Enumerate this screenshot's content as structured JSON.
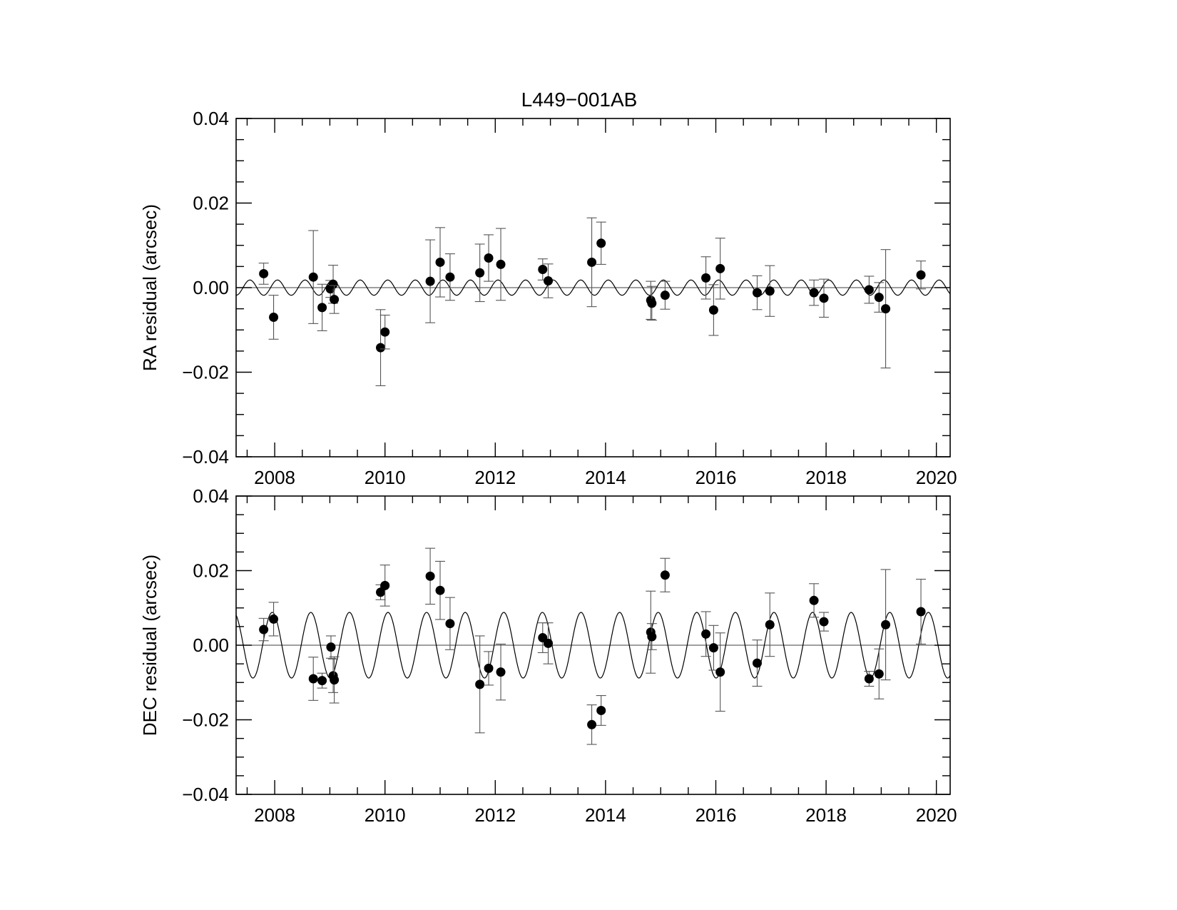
{
  "chart_data": {
    "title": "L449−001AB",
    "xlim": [
      2007.3,
      2020.25
    ],
    "xticks": [
      2008,
      2010,
      2012,
      2014,
      2016,
      2018,
      2020
    ],
    "xtick_labels": [
      "2008",
      "2010",
      "2012",
      "2014",
      "2016",
      "2018",
      "2020"
    ],
    "panels": [
      {
        "type": "scatter",
        "ylabel": "RA residual (arcsec)",
        "ylim": [
          -0.04,
          0.04
        ],
        "yticks": [
          -0.04,
          -0.02,
          0.0,
          0.02,
          0.04
        ],
        "ytick_labels": [
          "−0.04",
          "−0.02",
          "0.00",
          "0.02",
          "0.04"
        ],
        "model": {
          "amplitude": 0.0018,
          "period": 0.5,
          "phase": 0.05
        },
        "points": [
          {
            "x": 2007.8,
            "y": 0.0033,
            "err": 0.0025
          },
          {
            "x": 2007.98,
            "y": -0.007,
            "err": 0.0052
          },
          {
            "x": 2008.7,
            "y": 0.0025,
            "err": 0.011
          },
          {
            "x": 2008.86,
            "y": -0.0047,
            "err": 0.0055
          },
          {
            "x": 2009.01,
            "y": -0.0003,
            "err": 0.002
          },
          {
            "x": 2009.06,
            "y": 0.0008,
            "err": 0.0045
          },
          {
            "x": 2009.08,
            "y": -0.0028,
            "err": 0.0033
          },
          {
            "x": 2009.92,
            "y": -0.0142,
            "err": 0.009
          },
          {
            "x": 2010.0,
            "y": -0.0105,
            "err": 0.004
          },
          {
            "x": 2010.82,
            "y": 0.0015,
            "err": 0.0098
          },
          {
            "x": 2011.0,
            "y": 0.006,
            "err": 0.0082
          },
          {
            "x": 2011.18,
            "y": 0.0025,
            "err": 0.0055
          },
          {
            "x": 2011.72,
            "y": 0.0035,
            "err": 0.0068
          },
          {
            "x": 2011.88,
            "y": 0.007,
            "err": 0.0055
          },
          {
            "x": 2012.1,
            "y": 0.0055,
            "err": 0.0085
          },
          {
            "x": 2012.86,
            "y": 0.0043,
            "err": 0.0025
          },
          {
            "x": 2012.96,
            "y": 0.0016,
            "err": 0.004
          },
          {
            "x": 2013.75,
            "y": 0.006,
            "err": 0.0105
          },
          {
            "x": 2013.92,
            "y": 0.0105,
            "err": 0.005
          },
          {
            "x": 2014.82,
            "y": -0.003,
            "err": 0.0045
          },
          {
            "x": 2014.84,
            "y": -0.0037,
            "err": 0.004
          },
          {
            "x": 2015.08,
            "y": -0.0018,
            "err": 0.0033
          },
          {
            "x": 2015.82,
            "y": 0.0023,
            "err": 0.005
          },
          {
            "x": 2015.96,
            "y": -0.0053,
            "err": 0.006
          },
          {
            "x": 2016.08,
            "y": 0.0045,
            "err": 0.0072
          },
          {
            "x": 2016.75,
            "y": -0.0012,
            "err": 0.004
          },
          {
            "x": 2016.98,
            "y": -0.0008,
            "err": 0.006
          },
          {
            "x": 2017.78,
            "y": -0.0012,
            "err": 0.003
          },
          {
            "x": 2017.96,
            "y": -0.0025,
            "err": 0.0045
          },
          {
            "x": 2018.78,
            "y": -0.0005,
            "err": 0.0032
          },
          {
            "x": 2018.96,
            "y": -0.0023,
            "err": 0.0035
          },
          {
            "x": 2019.08,
            "y": -0.005,
            "err": 0.014
          },
          {
            "x": 2019.72,
            "y": 0.003,
            "err": 0.0033
          }
        ]
      },
      {
        "type": "scatter",
        "ylabel": "DEC residual (arcsec)",
        "ylim": [
          -0.04,
          0.04
        ],
        "yticks": [
          -0.04,
          -0.02,
          0.0,
          0.02,
          0.04
        ],
        "ytick_labels": [
          "−0.04",
          "−0.02",
          "0.00",
          "0.02",
          "0.04"
        ],
        "model": {
          "amplitude": 0.0088,
          "period": 0.7,
          "phase": -0.045
        },
        "points": [
          {
            "x": 2007.8,
            "y": 0.0042,
            "err": 0.003
          },
          {
            "x": 2007.98,
            "y": 0.007,
            "err": 0.0045
          },
          {
            "x": 2008.7,
            "y": -0.009,
            "err": 0.0058
          },
          {
            "x": 2008.86,
            "y": -0.0095,
            "err": 0.002
          },
          {
            "x": 2009.02,
            "y": -0.0005,
            "err": 0.003
          },
          {
            "x": 2009.06,
            "y": -0.0082,
            "err": 0.0045
          },
          {
            "x": 2009.08,
            "y": -0.0093,
            "err": 0.0062
          },
          {
            "x": 2009.92,
            "y": 0.0142,
            "err": 0.002
          },
          {
            "x": 2010.0,
            "y": 0.016,
            "err": 0.0055
          },
          {
            "x": 2010.82,
            "y": 0.0185,
            "err": 0.0075
          },
          {
            "x": 2011.0,
            "y": 0.0147,
            "err": 0.0078
          },
          {
            "x": 2011.18,
            "y": 0.0058,
            "err": 0.007
          },
          {
            "x": 2011.72,
            "y": -0.0105,
            "err": 0.013
          },
          {
            "x": 2011.88,
            "y": -0.0062,
            "err": 0.0045
          },
          {
            "x": 2012.1,
            "y": -0.0072,
            "err": 0.0075
          },
          {
            "x": 2012.86,
            "y": 0.002,
            "err": 0.004
          },
          {
            "x": 2012.96,
            "y": 0.0005,
            "err": 0.0055
          },
          {
            "x": 2013.75,
            "y": -0.0213,
            "err": 0.0053
          },
          {
            "x": 2013.92,
            "y": -0.0175,
            "err": 0.004
          },
          {
            "x": 2014.82,
            "y": 0.0035,
            "err": 0.011
          },
          {
            "x": 2014.84,
            "y": 0.0023,
            "err": 0.0035
          },
          {
            "x": 2015.08,
            "y": 0.0188,
            "err": 0.0045
          },
          {
            "x": 2015.82,
            "y": 0.003,
            "err": 0.006
          },
          {
            "x": 2015.96,
            "y": -0.0007,
            "err": 0.006
          },
          {
            "x": 2016.08,
            "y": -0.0072,
            "err": 0.0105
          },
          {
            "x": 2016.75,
            "y": -0.0048,
            "err": 0.0062
          },
          {
            "x": 2016.98,
            "y": 0.0055,
            "err": 0.0085
          },
          {
            "x": 2017.78,
            "y": 0.012,
            "err": 0.0045
          },
          {
            "x": 2017.96,
            "y": 0.0063,
            "err": 0.0025
          },
          {
            "x": 2018.78,
            "y": -0.009,
            "err": 0.002
          },
          {
            "x": 2018.96,
            "y": -0.0077,
            "err": 0.0067
          },
          {
            "x": 2019.08,
            "y": 0.0055,
            "err": 0.0148
          },
          {
            "x": 2019.72,
            "y": 0.009,
            "err": 0.0087
          }
        ]
      }
    ]
  }
}
